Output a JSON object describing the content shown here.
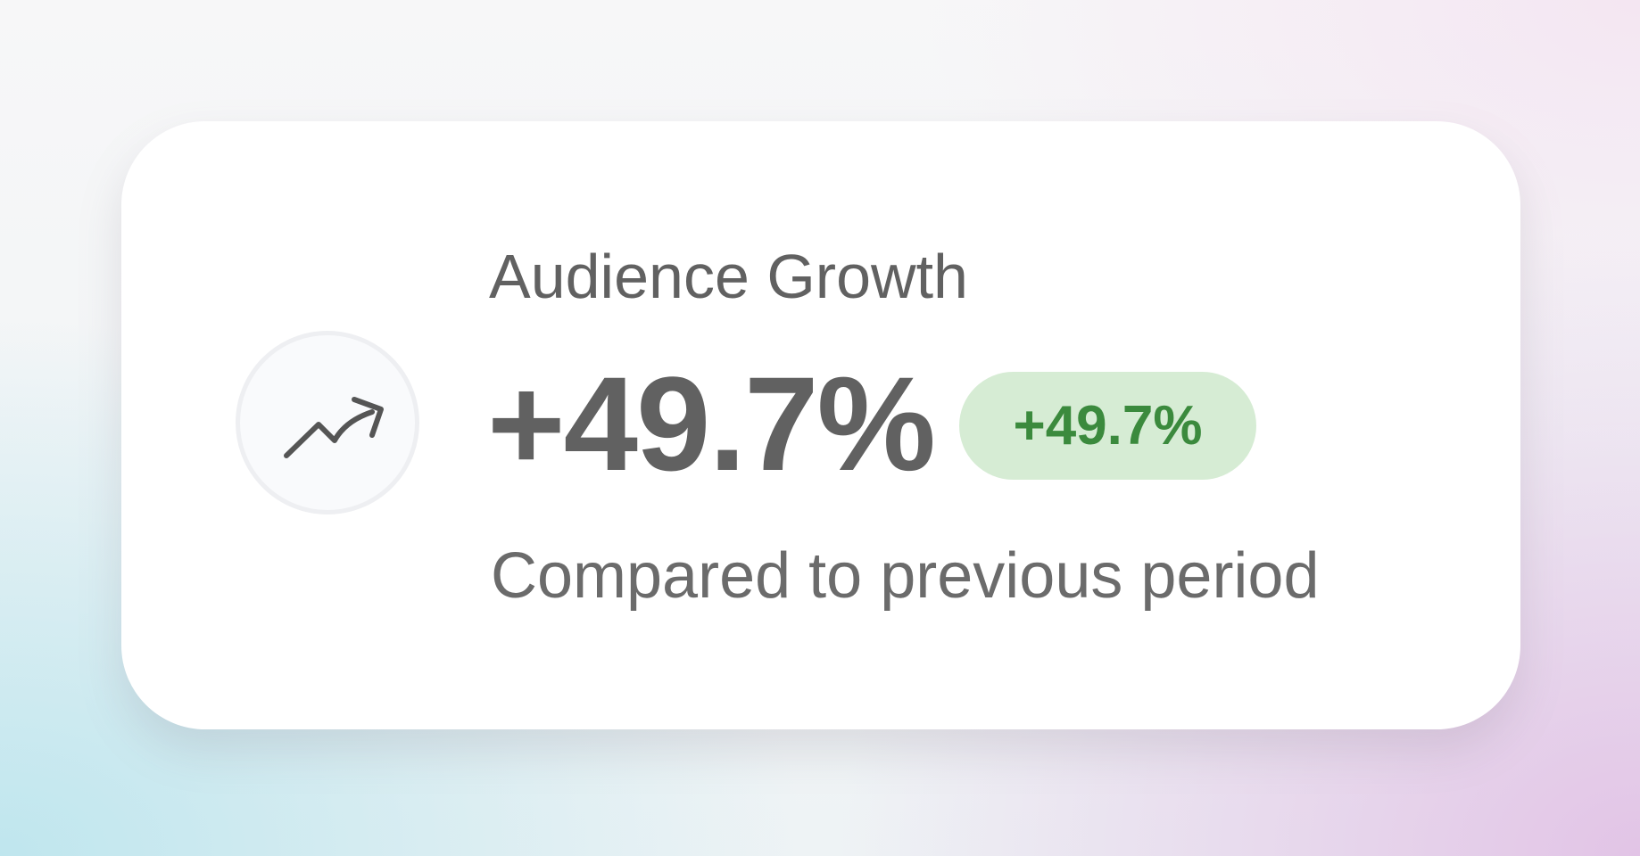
{
  "card": {
    "title": "Audience Growth",
    "value": "+49.7%",
    "badge": "+49.7%",
    "subtitle": "Compared to previous period"
  }
}
